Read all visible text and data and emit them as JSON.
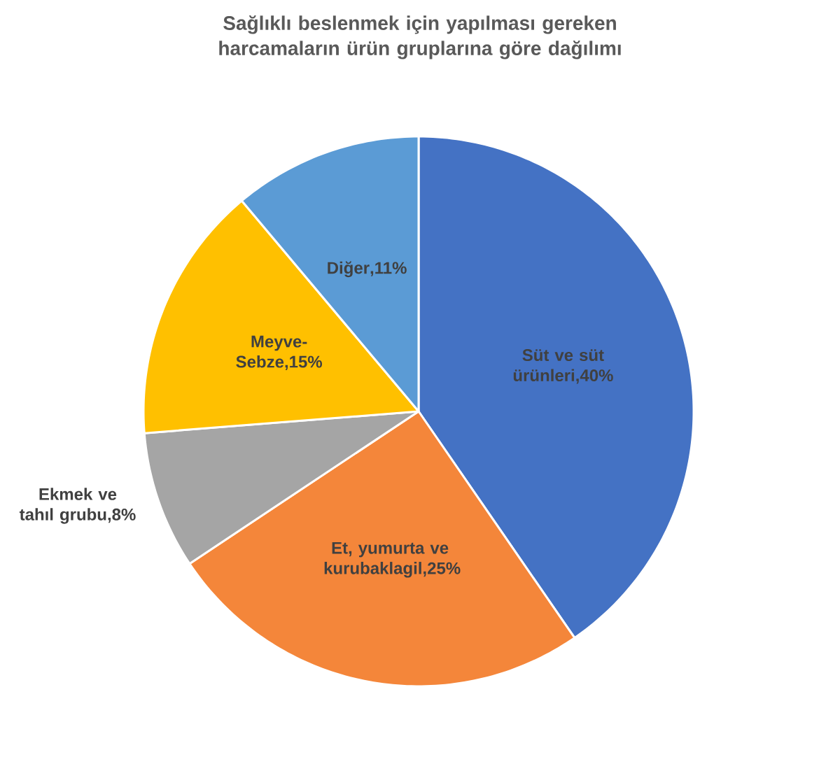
{
  "chart_data": {
    "type": "pie",
    "title": "Sağlıklı beslenmek için yapılması gereken harcamaların ürün gruplarına göre dağılımı",
    "categories": [
      "Süt ve süt ürünleri",
      "Et, yumurta ve kurubaklagil",
      "Ekmek ve tahıl grubu",
      "Meyve-Sebze",
      "Diğer"
    ],
    "values": [
      40,
      25,
      8,
      15,
      11
    ],
    "value_labels": [
      ",40%",
      ",25%",
      ",8%",
      ",15%",
      ",11%"
    ],
    "colors": [
      "#4472c4",
      "#f4863a",
      "#a5a5a5",
      "#ffc000",
      "#5b9bd5"
    ]
  }
}
